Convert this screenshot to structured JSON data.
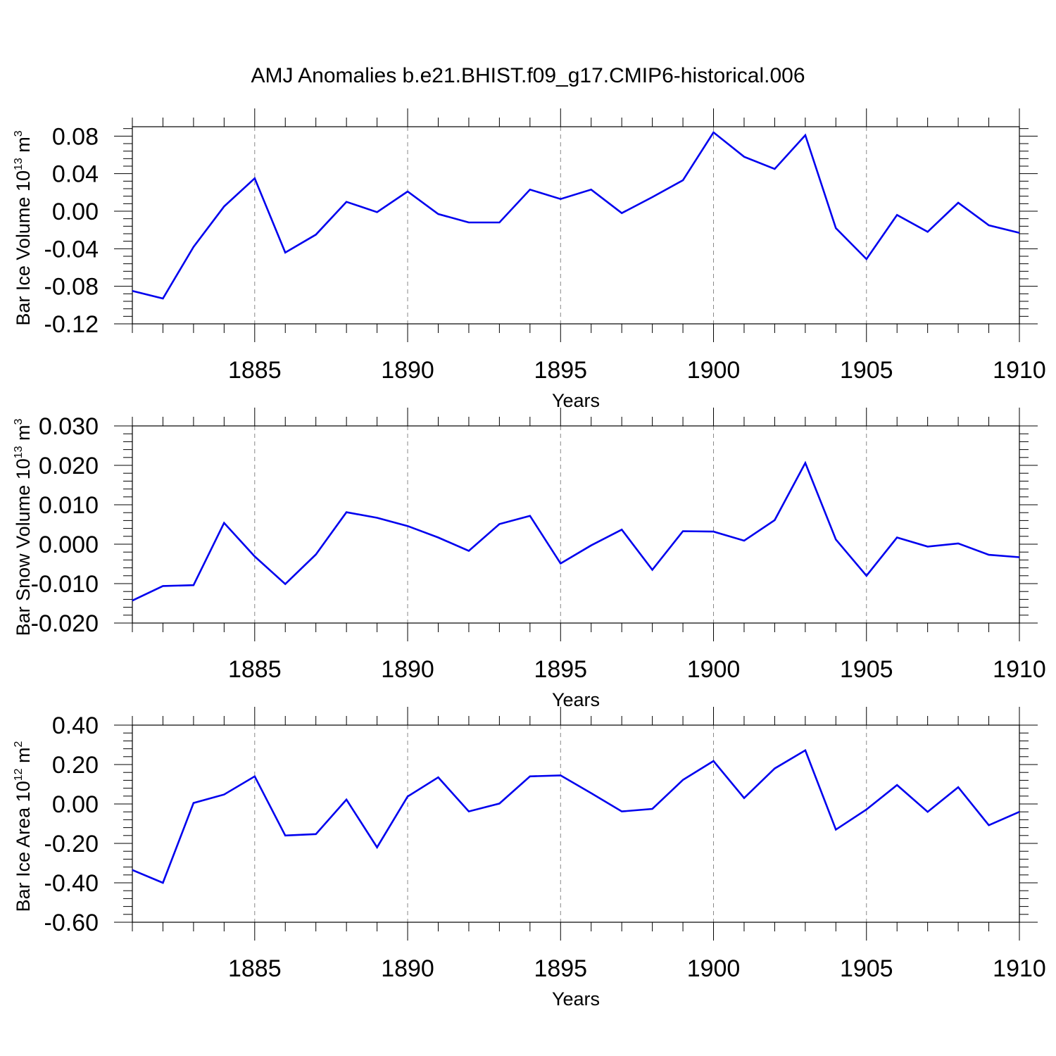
{
  "figure": {
    "title": "AMJ Anomalies b.e21.BHIST.f09_g17.CMIP6-historical.006",
    "line_color": "#0000ee"
  },
  "chart_data": [
    {
      "type": "line",
      "xlabel": "Years",
      "ylabel": "Bar Ice Volume 10",
      "ylabel_exp": "13",
      "ylabel_unit": " m",
      "ylabel_unit_exp": "3",
      "xlim": [
        1881,
        1910
      ],
      "ylim": [
        -0.12,
        0.09
      ],
      "xticks": [
        1885,
        1890,
        1895,
        1900,
        1905,
        1910
      ],
      "xtick_labels": [
        "1885",
        "1890",
        "1895",
        "1900",
        "1905",
        "1910"
      ],
      "yticks": [
        -0.12,
        -0.08,
        -0.04,
        0.0,
        0.04,
        0.08
      ],
      "ytick_labels": [
        "-0.12",
        "-0.08",
        "-0.04",
        "0.00",
        "0.04",
        "0.08"
      ],
      "grid": "vertical dashed at major x ticks",
      "x": [
        1881,
        1882,
        1883,
        1884,
        1885,
        1886,
        1887,
        1888,
        1889,
        1890,
        1891,
        1892,
        1893,
        1894,
        1895,
        1896,
        1897,
        1898,
        1899,
        1900,
        1901,
        1902,
        1903,
        1904,
        1905,
        1906,
        1907,
        1908,
        1909,
        1910
      ],
      "series": [
        {
          "values": [
            -0.085,
            -0.093,
            -0.038,
            0.005,
            0.035,
            -0.044,
            -0.025,
            0.01,
            -0.001,
            0.021,
            -0.003,
            -0.012,
            -0.012,
            0.023,
            0.013,
            0.023,
            -0.002,
            0.015,
            0.033,
            0.084,
            0.058,
            0.045,
            0.081,
            -0.018,
            -0.051,
            -0.004,
            -0.022,
            0.009,
            -0.015,
            -0.023
          ]
        }
      ]
    },
    {
      "type": "line",
      "xlabel": "Years",
      "ylabel": "Bar Snow Volume 10",
      "ylabel_exp": "13",
      "ylabel_unit": " m",
      "ylabel_unit_exp": "3",
      "xlim": [
        1881,
        1910
      ],
      "ylim": [
        -0.02,
        0.03
      ],
      "xticks": [
        1885,
        1890,
        1895,
        1900,
        1905,
        1910
      ],
      "xtick_labels": [
        "1885",
        "1890",
        "1895",
        "1900",
        "1905",
        "1910"
      ],
      "yticks": [
        -0.02,
        -0.01,
        0.0,
        0.01,
        0.02,
        0.03
      ],
      "ytick_labels": [
        "-0.020",
        "-0.010",
        "0.000",
        "0.010",
        "0.020",
        "0.030"
      ],
      "grid": "vertical dashed at major x ticks",
      "x": [
        1881,
        1882,
        1883,
        1884,
        1885,
        1886,
        1887,
        1888,
        1889,
        1890,
        1891,
        1892,
        1893,
        1894,
        1895,
        1896,
        1897,
        1898,
        1899,
        1900,
        1901,
        1902,
        1903,
        1904,
        1905,
        1906,
        1907,
        1908,
        1909,
        1910
      ],
      "series": [
        {
          "values": [
            -0.0143,
            -0.0106,
            -0.0104,
            0.0054,
            -0.0031,
            -0.0101,
            -0.0026,
            0.0081,
            0.0067,
            0.0046,
            0.0017,
            -0.0017,
            0.0051,
            0.0072,
            -0.0049,
            -0.0003,
            0.0037,
            -0.0065,
            0.0033,
            0.0032,
            0.0009,
            0.0061,
            0.0206,
            0.0012,
            -0.008,
            0.0017,
            -0.0006,
            0.0002,
            -0.0027,
            -0.0033
          ]
        }
      ]
    },
    {
      "type": "line",
      "xlabel": "Years",
      "ylabel": "Bar Ice Area 10",
      "ylabel_exp": "12",
      "ylabel_unit": " m",
      "ylabel_unit_exp": "2",
      "xlim": [
        1881,
        1910
      ],
      "ylim": [
        -0.6,
        0.4
      ],
      "xticks": [
        1885,
        1890,
        1895,
        1900,
        1905,
        1910
      ],
      "xtick_labels": [
        "1885",
        "1890",
        "1895",
        "1900",
        "1905",
        "1910"
      ],
      "yticks": [
        -0.6,
        -0.4,
        -0.2,
        0.0,
        0.2,
        0.4
      ],
      "ytick_labels": [
        "-0.60",
        "-0.40",
        "-0.20",
        "0.00",
        "0.20",
        "0.40"
      ],
      "grid": "vertical dashed at major x ticks",
      "x": [
        1881,
        1882,
        1883,
        1884,
        1885,
        1886,
        1887,
        1888,
        1889,
        1890,
        1891,
        1892,
        1893,
        1894,
        1895,
        1896,
        1897,
        1898,
        1899,
        1900,
        1901,
        1902,
        1903,
        1904,
        1905,
        1906,
        1907,
        1908,
        1909,
        1910
      ],
      "series": [
        {
          "values": [
            -0.335,
            -0.4,
            0.005,
            0.048,
            0.14,
            -0.16,
            -0.153,
            0.022,
            -0.22,
            0.038,
            0.135,
            -0.038,
            0.002,
            0.14,
            0.145,
            0.055,
            -0.038,
            -0.025,
            0.122,
            0.218,
            0.03,
            0.18,
            0.272,
            -0.13,
            -0.028,
            0.096,
            -0.04,
            0.085,
            -0.108,
            -0.04
          ]
        }
      ]
    }
  ]
}
